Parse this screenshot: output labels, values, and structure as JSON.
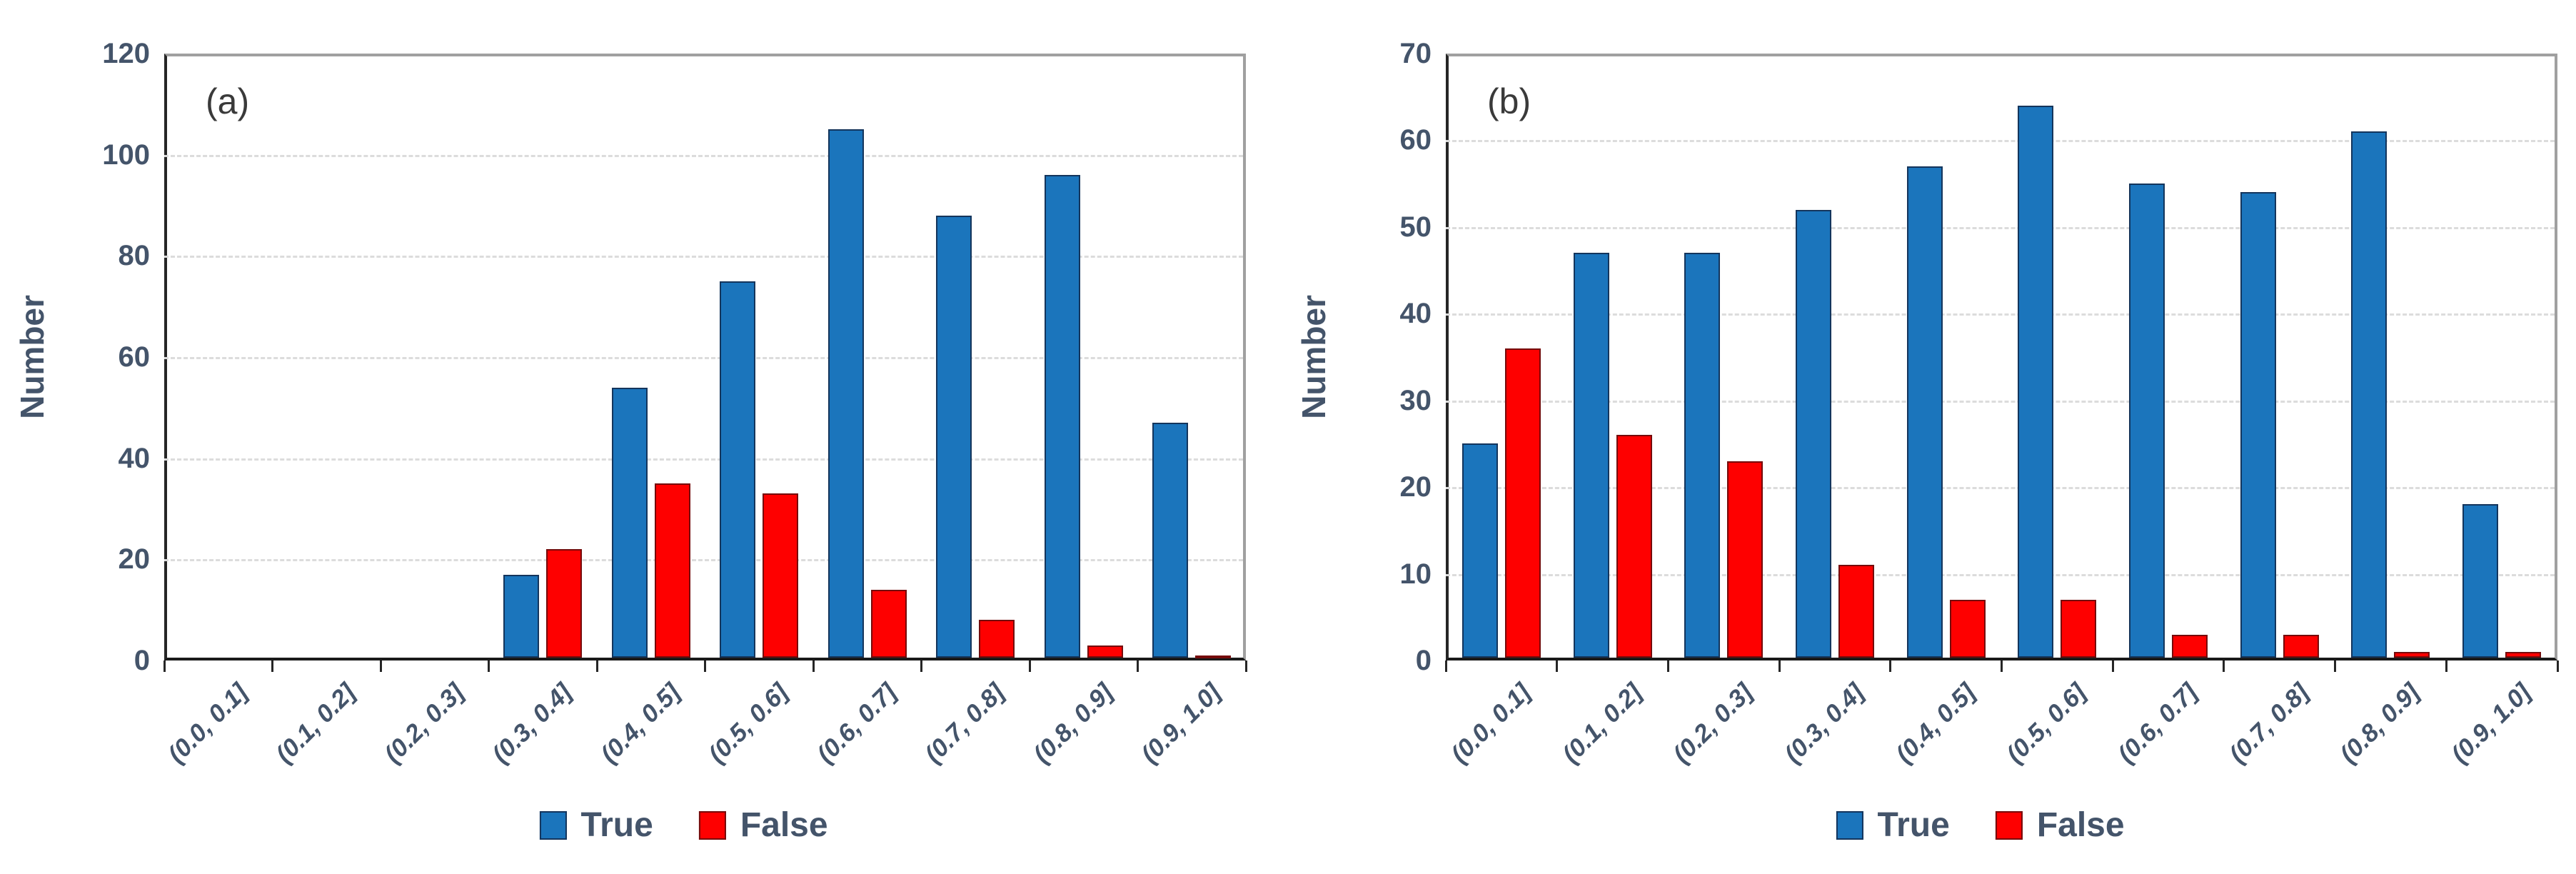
{
  "figure": {
    "background": "#ffffff",
    "accent_blue": "#1b75bc",
    "accent_red": "#fe0000",
    "text_color": "#44546a"
  },
  "chart_data": [
    {
      "type": "bar",
      "panel_label": "(a)",
      "ylabel": "Number",
      "xlabel": "",
      "categories": [
        "(0.0, 0.1]",
        "(0.1, 0.2]",
        "(0.2, 0.3]",
        "(0.3, 0.4]",
        "(0.4, 0.5]",
        "(0.5, 0.6]",
        "(0.6, 0.7]",
        "(0.7, 0.8]",
        "(0.8, 0.9]",
        "(0.9, 1.0]"
      ],
      "series": [
        {
          "name": "True",
          "color": "#1b75bc",
          "values": [
            0,
            0,
            0,
            17,
            54,
            75,
            105,
            88,
            96,
            47
          ]
        },
        {
          "name": "False",
          "color": "#fe0000",
          "values": [
            0,
            0,
            0,
            22,
            35,
            33,
            14,
            8,
            3,
            1
          ]
        }
      ],
      "ylim": [
        0,
        120
      ],
      "ytick_step": 20,
      "yticks": [
        "0",
        "20",
        "40",
        "60",
        "80",
        "100",
        "120"
      ],
      "grid": "horizontal-dashed",
      "legend_position": "bottom"
    },
    {
      "type": "bar",
      "panel_label": "(b)",
      "ylabel": "Number",
      "xlabel": "",
      "categories": [
        "(0.0, 0.1]",
        "(0.1, 0.2]",
        "(0.2, 0.3]",
        "(0.3, 0.4]",
        "(0.4, 0.5]",
        "(0.5, 0.6]",
        "(0.6, 0.7]",
        "(0.7, 0.8]",
        "(0.8, 0.9]",
        "(0.9, 1.0]"
      ],
      "series": [
        {
          "name": "True",
          "color": "#1b75bc",
          "values": [
            25,
            47,
            47,
            52,
            57,
            64,
            55,
            54,
            61,
            18
          ]
        },
        {
          "name": "False",
          "color": "#fe0000",
          "values": [
            36,
            26,
            23,
            11,
            7,
            7,
            3,
            3,
            1,
            1
          ]
        }
      ],
      "ylim": [
        0,
        70
      ],
      "ytick_step": 10,
      "yticks": [
        "0",
        "10",
        "20",
        "30",
        "40",
        "50",
        "60",
        "70"
      ],
      "grid": "horizontal-dashed",
      "legend_position": "bottom"
    }
  ]
}
